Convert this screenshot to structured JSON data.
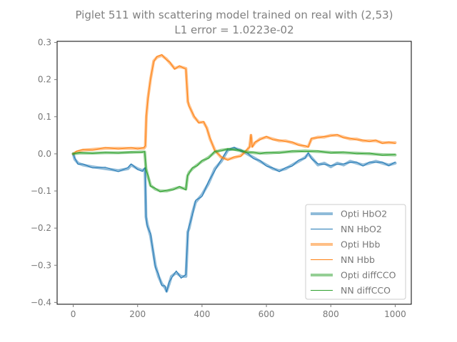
{
  "chart_data": {
    "type": "line",
    "title": "Piglet 511 with scattering model trained on real with (2,53)",
    "subtitle": "L1 error = 1.0223e-02",
    "xlabel": "",
    "ylabel": "",
    "xlim": [
      -50,
      1050
    ],
    "ylim": [
      -0.405,
      0.303
    ],
    "xticks": [
      0,
      200,
      400,
      600,
      800,
      1000
    ],
    "xtick_labels": [
      "0",
      "200",
      "400",
      "600",
      "800",
      "1000"
    ],
    "yticks": [
      -0.4,
      -0.3,
      -0.2,
      -0.1,
      0.0,
      0.1,
      0.2,
      0.3
    ],
    "ytick_labels": [
      "−0.4",
      "−0.3",
      "−0.2",
      "−0.1",
      "0.0",
      "0.1",
      "0.2",
      "0.3"
    ],
    "grid": false,
    "legend_position": "lower right",
    "colors": {
      "HbO2": "#1f77b4",
      "Hbb": "#ff7f0e",
      "diffCCO": "#2ca02c",
      "text": "#777777",
      "axis": "#000000"
    },
    "series": [
      {
        "name": "Opti HbO2",
        "color": "#1f77b4",
        "style": "thick",
        "x": [
          0,
          5,
          15,
          30,
          60,
          100,
          140,
          170,
          180,
          200,
          215,
          223,
          226,
          230,
          240,
          255,
          265,
          275,
          285,
          290,
          298,
          305,
          320,
          335,
          350,
          356,
          360,
          370,
          380,
          400,
          420,
          440,
          460,
          480,
          500,
          520,
          540,
          560,
          580,
          600,
          620,
          640,
          660,
          680,
          700,
          720,
          730,
          740,
          760,
          780,
          800,
          820,
          840,
          860,
          880,
          900,
          920,
          940,
          960,
          980,
          1000
        ],
        "y": [
          0.0,
          -0.015,
          -0.025,
          -0.03,
          -0.035,
          -0.04,
          -0.045,
          -0.04,
          -0.03,
          -0.04,
          -0.045,
          -0.04,
          -0.17,
          -0.19,
          -0.22,
          -0.3,
          -0.33,
          -0.35,
          -0.36,
          -0.37,
          -0.35,
          -0.33,
          -0.32,
          -0.33,
          -0.33,
          -0.21,
          -0.2,
          -0.16,
          -0.13,
          -0.11,
          -0.08,
          -0.04,
          -0.02,
          0.01,
          0.015,
          0.01,
          0.0,
          -0.01,
          -0.02,
          -0.03,
          -0.04,
          -0.045,
          -0.04,
          -0.03,
          -0.02,
          -0.01,
          0.0,
          -0.01,
          -0.03,
          -0.025,
          -0.035,
          -0.025,
          -0.03,
          -0.02,
          -0.025,
          -0.03,
          -0.025,
          -0.02,
          -0.025,
          -0.03,
          -0.025
        ]
      },
      {
        "name": "NN HbO2",
        "color": "#1f77b4",
        "style": "thin",
        "x": [
          0,
          5,
          15,
          30,
          60,
          100,
          140,
          170,
          180,
          200,
          215,
          223,
          226,
          230,
          240,
          255,
          265,
          275,
          285,
          290,
          298,
          305,
          320,
          335,
          350,
          356,
          360,
          370,
          380,
          400,
          420,
          440,
          460,
          480,
          500,
          520,
          540,
          560,
          580,
          600,
          620,
          640,
          660,
          680,
          700,
          720,
          730,
          740,
          760,
          780,
          800,
          820,
          840,
          860,
          880,
          900,
          920,
          940,
          960,
          980,
          1000
        ],
        "y": [
          0.0,
          -0.012,
          -0.028,
          -0.027,
          -0.038,
          -0.036,
          -0.048,
          -0.037,
          -0.027,
          -0.042,
          -0.047,
          -0.037,
          -0.168,
          -0.195,
          -0.215,
          -0.305,
          -0.325,
          -0.355,
          -0.355,
          -0.372,
          -0.345,
          -0.335,
          -0.315,
          -0.335,
          -0.325,
          -0.212,
          -0.195,
          -0.165,
          -0.125,
          -0.115,
          -0.075,
          -0.045,
          -0.015,
          0.012,
          0.018,
          0.007,
          0.003,
          -0.013,
          -0.018,
          -0.033,
          -0.038,
          -0.048,
          -0.037,
          -0.033,
          -0.017,
          -0.012,
          0.003,
          -0.013,
          -0.027,
          -0.028,
          -0.032,
          -0.028,
          -0.027,
          -0.023,
          -0.022,
          -0.033,
          -0.022,
          -0.023,
          -0.022,
          -0.032,
          -0.022
        ]
      },
      {
        "name": "Opti Hbb",
        "color": "#ff7f0e",
        "style": "thick",
        "x": [
          0,
          10,
          30,
          60,
          100,
          140,
          180,
          200,
          220,
          224,
          227,
          232,
          240,
          250,
          260,
          275,
          290,
          300,
          315,
          330,
          350,
          356,
          360,
          375,
          390,
          405,
          415,
          425,
          440,
          460,
          480,
          500,
          520,
          540,
          548,
          552,
          556,
          565,
          580,
          600,
          620,
          640,
          660,
          680,
          700,
          720,
          730,
          740,
          760,
          780,
          800,
          820,
          840,
          860,
          880,
          900,
          920,
          940,
          960,
          980,
          1000
        ],
        "y": [
          0.0,
          0.005,
          0.01,
          0.012,
          0.015,
          0.015,
          0.015,
          0.015,
          0.015,
          0.02,
          0.1,
          0.15,
          0.2,
          0.25,
          0.26,
          0.265,
          0.255,
          0.245,
          0.23,
          0.235,
          0.23,
          0.14,
          0.13,
          0.1,
          0.085,
          0.085,
          0.07,
          0.04,
          0.01,
          -0.01,
          -0.015,
          -0.01,
          -0.005,
          0.01,
          0.02,
          0.05,
          0.02,
          0.03,
          0.04,
          0.045,
          0.04,
          0.035,
          0.035,
          0.03,
          0.025,
          0.02,
          0.02,
          0.04,
          0.045,
          0.045,
          0.05,
          0.05,
          0.045,
          0.04,
          0.04,
          0.035,
          0.035,
          0.035,
          0.03,
          0.03,
          0.03
        ]
      },
      {
        "name": "NN Hbb",
        "color": "#ff7f0e",
        "style": "thin",
        "x": [
          0,
          10,
          30,
          60,
          100,
          140,
          180,
          200,
          220,
          224,
          227,
          232,
          240,
          250,
          260,
          275,
          290,
          300,
          315,
          330,
          350,
          356,
          360,
          375,
          390,
          405,
          415,
          425,
          440,
          460,
          480,
          500,
          520,
          540,
          548,
          552,
          556,
          565,
          580,
          600,
          620,
          640,
          660,
          680,
          700,
          720,
          730,
          740,
          760,
          780,
          800,
          820,
          840,
          860,
          880,
          900,
          920,
          940,
          960,
          980,
          1000
        ],
        "y": [
          0.0,
          0.007,
          0.012,
          0.01,
          0.017,
          0.013,
          0.017,
          0.013,
          0.017,
          0.022,
          0.102,
          0.148,
          0.202,
          0.248,
          0.262,
          0.267,
          0.253,
          0.247,
          0.228,
          0.237,
          0.228,
          0.142,
          0.128,
          0.102,
          0.083,
          0.087,
          0.068,
          0.042,
          0.008,
          -0.008,
          -0.017,
          -0.008,
          -0.007,
          0.012,
          0.018,
          0.052,
          0.018,
          0.032,
          0.038,
          0.047,
          0.038,
          0.037,
          0.033,
          0.032,
          0.023,
          0.022,
          0.018,
          0.042,
          0.043,
          0.047,
          0.048,
          0.052,
          0.043,
          0.042,
          0.038,
          0.037,
          0.033,
          0.037,
          0.028,
          0.032,
          0.028
        ]
      },
      {
        "name": "Opti diffCCO",
        "color": "#2ca02c",
        "style": "thick",
        "x": [
          0,
          20,
          60,
          100,
          140,
          180,
          210,
          222,
          226,
          232,
          240,
          255,
          270,
          290,
          310,
          330,
          350,
          355,
          360,
          370,
          385,
          400,
          420,
          440,
          460,
          480,
          500,
          520,
          540,
          560,
          580,
          600,
          640,
          680,
          720,
          760,
          800,
          840,
          880,
          920,
          960,
          1000
        ],
        "y": [
          0.0,
          0.002,
          0.002,
          0.003,
          0.003,
          0.004,
          0.005,
          0.005,
          -0.04,
          -0.06,
          -0.085,
          -0.095,
          -0.1,
          -0.1,
          -0.095,
          -0.09,
          -0.095,
          -0.06,
          -0.05,
          -0.04,
          -0.03,
          -0.02,
          -0.01,
          0.005,
          0.01,
          0.012,
          0.012,
          0.008,
          0.005,
          0.003,
          0.002,
          0.002,
          0.004,
          0.006,
          0.008,
          0.006,
          0.004,
          0.003,
          0.002,
          0.0,
          -0.002,
          -0.003
        ]
      },
      {
        "name": "NN diffCCO",
        "color": "#2ca02c",
        "style": "thin",
        "x": [
          0,
          20,
          60,
          100,
          140,
          180,
          210,
          222,
          226,
          232,
          240,
          255,
          270,
          290,
          310,
          330,
          350,
          355,
          360,
          370,
          385,
          400,
          420,
          440,
          460,
          480,
          500,
          520,
          540,
          560,
          580,
          600,
          640,
          680,
          720,
          760,
          800,
          840,
          880,
          920,
          960,
          1000
        ],
        "y": [
          0.0,
          0.003,
          0.001,
          0.004,
          0.002,
          0.005,
          0.004,
          0.006,
          -0.042,
          -0.058,
          -0.087,
          -0.093,
          -0.102,
          -0.098,
          -0.097,
          -0.088,
          -0.097,
          -0.058,
          -0.052,
          -0.038,
          -0.032,
          -0.018,
          -0.012,
          0.007,
          0.008,
          0.014,
          0.01,
          0.01,
          0.003,
          0.005,
          0.0,
          0.004,
          0.002,
          0.008,
          0.006,
          0.008,
          0.002,
          0.005,
          0.0,
          0.002,
          -0.004,
          -0.001
        ]
      }
    ]
  }
}
